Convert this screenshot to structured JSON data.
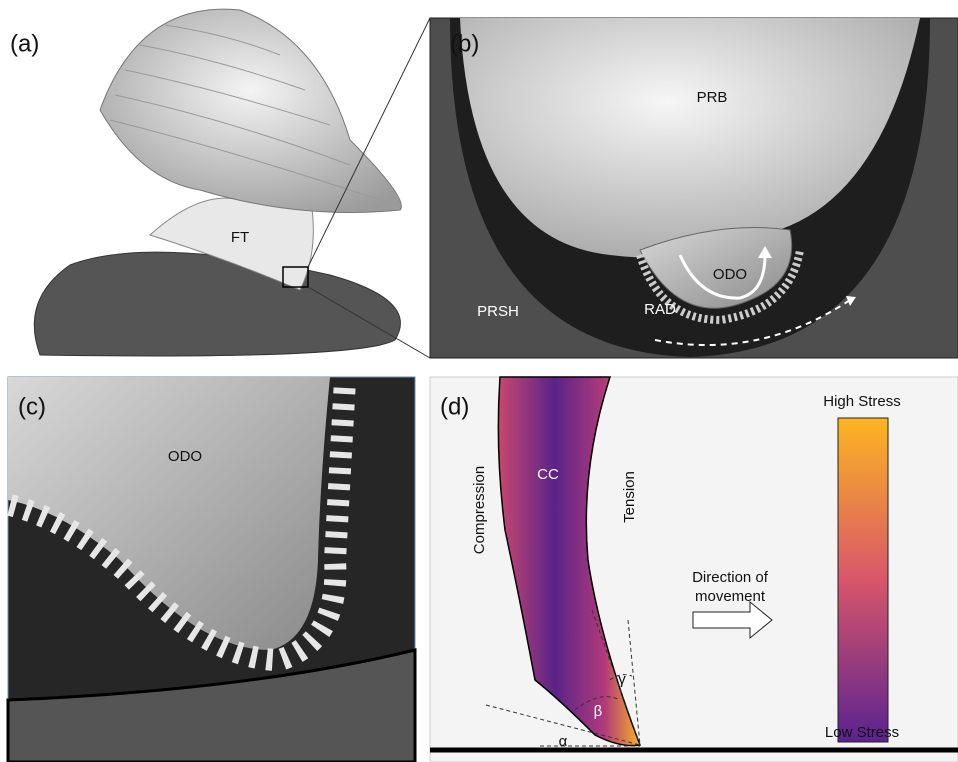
{
  "panels": {
    "a": {
      "tag": "(a)",
      "labels": [
        "FT"
      ]
    },
    "b": {
      "tag": "(b)",
      "labels": [
        "PRB",
        "ODO",
        "PRSH",
        "RAD"
      ]
    },
    "c": {
      "tag": "(c)",
      "labels": [
        "ODO"
      ]
    },
    "d": {
      "tag": "(d)",
      "labels": [
        "CC",
        "Compression",
        "Tension"
      ],
      "direction_label": [
        "Direction of",
        "movement"
      ],
      "colorbar": {
        "top": "High Stress",
        "bottom": "Low Stress"
      },
      "angles": [
        "α",
        "β",
        "γ"
      ]
    }
  }
}
